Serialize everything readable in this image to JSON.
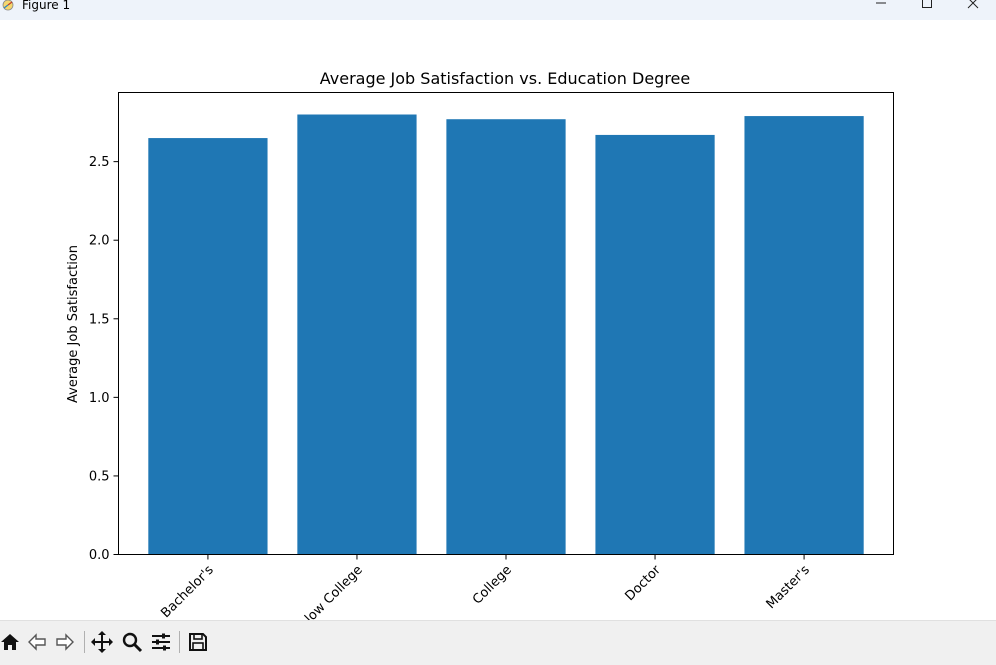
{
  "window": {
    "title": "Figure 1",
    "controls": {
      "minimize_icon": "minimize-icon",
      "maximize_icon": "maximize-icon",
      "close_icon": "close-icon"
    }
  },
  "toolbar": {
    "buttons": [
      "home-icon",
      "back-arrow-icon",
      "forward-arrow-icon",
      "pan-icon",
      "zoom-icon",
      "configure-subplots-icon",
      "save-icon"
    ]
  },
  "colors": {
    "bar": "#1f77b4",
    "titlebar": "#eef3fa",
    "toolbar": "#f0f0f0"
  },
  "chart_data": {
    "type": "bar",
    "title": "Average Job Satisfaction vs. Education Degree",
    "xlabel": "",
    "ylabel": "Average Job Satisfaction",
    "categories": [
      "Bachelor's",
      "Below College",
      "College",
      "Doctor",
      "Master's"
    ],
    "values": [
      2.65,
      2.8,
      2.77,
      2.67,
      2.79
    ],
    "ylim": [
      0,
      2.94
    ],
    "yticks": [
      0.0,
      0.5,
      1.0,
      1.5,
      2.0,
      2.5
    ],
    "ytick_labels": [
      "0.0",
      "0.5",
      "1.0",
      "1.5",
      "2.0",
      "2.5"
    ],
    "xtick_rotation": 45,
    "grid": false,
    "legend": "none"
  }
}
